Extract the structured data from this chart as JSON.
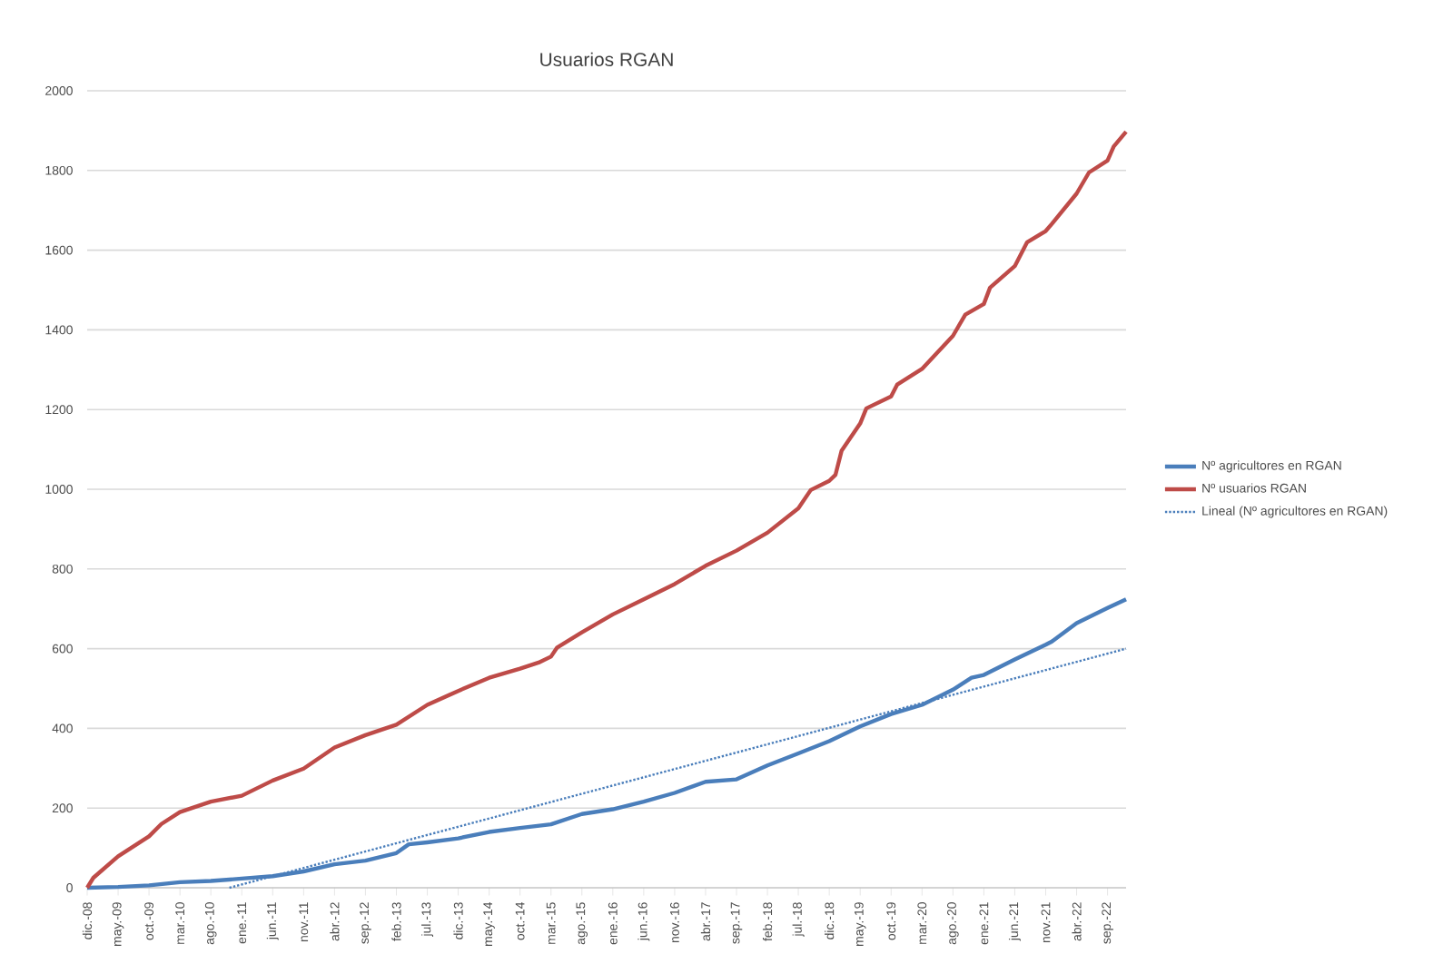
{
  "chart_data": {
    "type": "line",
    "title": "Usuarios RGAN",
    "xlim": [
      "2008-12",
      "2022-12"
    ],
    "xticks": [
      {
        "value": "2008-12",
        "label": "dic.-08"
      },
      {
        "value": "2009-05",
        "label": "may.-09"
      },
      {
        "value": "2009-10",
        "label": "oct.-09"
      },
      {
        "value": "2010-03",
        "label": "mar.-10"
      },
      {
        "value": "2010-08",
        "label": "ago.-10"
      },
      {
        "value": "2011-01",
        "label": "ene.-11"
      },
      {
        "value": "2011-06",
        "label": "jun.-11"
      },
      {
        "value": "2011-11",
        "label": "nov.-11"
      },
      {
        "value": "2012-04",
        "label": "abr.-12"
      },
      {
        "value": "2012-09",
        "label": "sep.-12"
      },
      {
        "value": "2013-02",
        "label": "feb.-13"
      },
      {
        "value": "2013-07",
        "label": "jul.-13"
      },
      {
        "value": "2013-12",
        "label": "dic.-13"
      },
      {
        "value": "2014-05",
        "label": "may.-14"
      },
      {
        "value": "2014-10",
        "label": "oct.-14"
      },
      {
        "value": "2015-03",
        "label": "mar.-15"
      },
      {
        "value": "2015-08",
        "label": "ago.-15"
      },
      {
        "value": "2016-01",
        "label": "ene.-16"
      },
      {
        "value": "2016-06",
        "label": "jun.-16"
      },
      {
        "value": "2016-11",
        "label": "nov.-16"
      },
      {
        "value": "2017-04",
        "label": "abr.-17"
      },
      {
        "value": "2017-09",
        "label": "sep.-17"
      },
      {
        "value": "2018-02",
        "label": "feb.-18"
      },
      {
        "value": "2018-07",
        "label": "jul.-18"
      },
      {
        "value": "2018-12",
        "label": "dic.-18"
      },
      {
        "value": "2019-05",
        "label": "may.-19"
      },
      {
        "value": "2019-10",
        "label": "oct.-19"
      },
      {
        "value": "2020-03",
        "label": "mar.-20"
      },
      {
        "value": "2020-08",
        "label": "ago.-20"
      },
      {
        "value": "2021-01",
        "label": "ene.-21"
      },
      {
        "value": "2021-06",
        "label": "jun.-21"
      },
      {
        "value": "2021-11",
        "label": "nov.-21"
      },
      {
        "value": "2022-04",
        "label": "abr.-22"
      },
      {
        "value": "2022-09",
        "label": "sep.-22"
      }
    ],
    "ylim": [
      0,
      2000
    ],
    "yticks": [
      0,
      200,
      400,
      600,
      800,
      1000,
      1200,
      1400,
      1600,
      1800,
      2000
    ],
    "grid": "y",
    "legend": "right",
    "series": [
      {
        "name": "Nº agricultores en RGAN",
        "color": "#4a7ebb",
        "line_style": "solid",
        "x": [
          "2008-12",
          "2009-05",
          "2009-10",
          "2010-03",
          "2010-08",
          "2011-01",
          "2011-06",
          "2011-11",
          "2012-04",
          "2012-09",
          "2013-02",
          "2013-04",
          "2013-07",
          "2013-12",
          "2014-05",
          "2014-10",
          "2015-03",
          "2015-08",
          "2016-01",
          "2016-06",
          "2016-11",
          "2017-04",
          "2017-09",
          "2018-02",
          "2018-07",
          "2018-12",
          "2019-05",
          "2019-10",
          "2020-03",
          "2020-08",
          "2020-11",
          "2021-01",
          "2021-06",
          "2021-11",
          "2021-12",
          "2022-04",
          "2022-09",
          "2022-12"
        ],
        "values": [
          0,
          2,
          6,
          14,
          17,
          23,
          29,
          41,
          59,
          68,
          87,
          109,
          114,
          124,
          140,
          150,
          159,
          185,
          197,
          216,
          238,
          266,
          272,
          307,
          337,
          368,
          405,
          436,
          459,
          497,
          527,
          534,
          573,
          610,
          618,
          664,
          702,
          724
        ]
      },
      {
        "name": "Nº usuarios RGAN",
        "color": "#be4b48",
        "line_style": "solid",
        "x": [
          "2008-12",
          "2009-01",
          "2009-05",
          "2009-10",
          "2009-12",
          "2010-03",
          "2010-08",
          "2011-01",
          "2011-06",
          "2011-11",
          "2012-04",
          "2012-09",
          "2013-02",
          "2013-07",
          "2013-12",
          "2014-05",
          "2014-10",
          "2015-01",
          "2015-03",
          "2015-04",
          "2015-08",
          "2016-01",
          "2016-06",
          "2016-11",
          "2017-04",
          "2017-09",
          "2018-02",
          "2018-07",
          "2018-09",
          "2018-12",
          "2019-01",
          "2019-02",
          "2019-05",
          "2019-06",
          "2019-10",
          "2019-11",
          "2020-03",
          "2020-08",
          "2020-10",
          "2021-01",
          "2021-02",
          "2021-06",
          "2021-08",
          "2021-11",
          "2021-12",
          "2022-04",
          "2022-06",
          "2022-09",
          "2022-10",
          "2022-12"
        ],
        "values": [
          0,
          25,
          79,
          129,
          160,
          190,
          216,
          231,
          269,
          299,
          352,
          383,
          409,
          459,
          494,
          527,
          550,
          565,
          580,
          603,
          641,
          686,
          724,
          762,
          808,
          846,
          891,
          952,
          998,
          1021,
          1036,
          1097,
          1165,
          1203,
          1233,
          1263,
          1302,
          1385,
          1438,
          1465,
          1506,
          1560,
          1620,
          1648,
          1666,
          1742,
          1795,
          1825,
          1860,
          1897
        ]
      },
      {
        "name": "Lineal (Nº agricultores en RGAN)",
        "color": "#4a7ebb",
        "line_style": "dotted",
        "x": [
          "2010-11",
          "2022-12"
        ],
        "values": [
          0,
          600
        ]
      }
    ]
  }
}
